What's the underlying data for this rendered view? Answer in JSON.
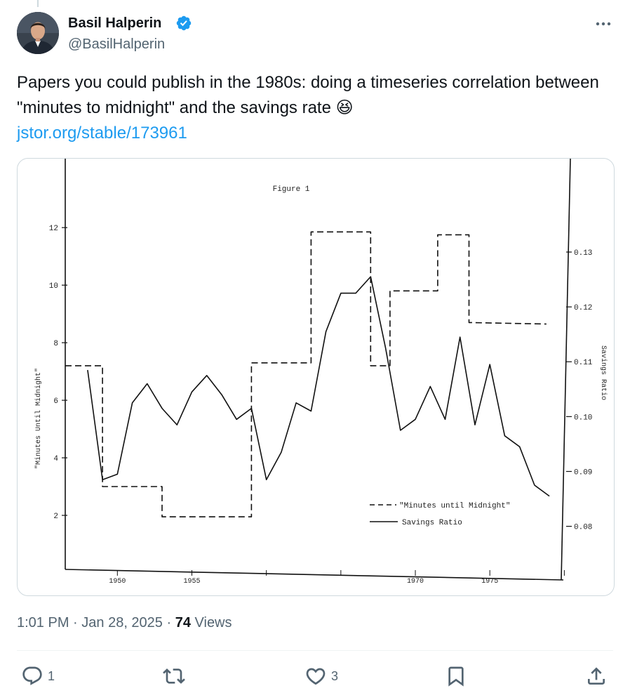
{
  "author": {
    "name": "Basil Halperin",
    "handle": "@BasilHalperin"
  },
  "tweet": {
    "text": "Papers you could publish in the 1980s: doing a timeseries correlation between \"minutes to midnight\" and the savings rate 😆",
    "link": "jstor.org/stable/173961"
  },
  "meta": {
    "time": "1:01 PM",
    "date": "Jan 28, 2025",
    "views_count": "74",
    "views_label": "Views"
  },
  "actions": {
    "reply_count": "1",
    "retweet_count": "",
    "like_count": "3"
  },
  "icons": [
    "verified-badge-icon",
    "more-icon",
    "reply-icon",
    "retweet-icon",
    "like-icon",
    "bookmark-icon",
    "share-icon"
  ],
  "colors": {
    "link": "#1d9bf0",
    "verified": "#1d9bf0",
    "muted": "#536471"
  },
  "chart_data": {
    "type": "line",
    "title": "Figure 1",
    "xlabel": "",
    "ylabel": "\"Minutes Until Midnight\"",
    "y2label": "Savings Ratio",
    "x_ticks": [
      "1950",
      "1955",
      "",
      "",
      "1970",
      "1975",
      ""
    ],
    "x_tick_values": [
      1950,
      1955,
      1960,
      1965,
      1970,
      1975,
      1980
    ],
    "xlim": [
      1946.5,
      1980.5
    ],
    "y_ticks": [
      2,
      4,
      6,
      8,
      10,
      12
    ],
    "ylim": [
      0,
      14.2
    ],
    "y2_ticks": [
      "0.08",
      "0.09",
      "0.10",
      "0.11",
      "0.12",
      "0.13"
    ],
    "y2_tick_values": [
      0.08,
      0.09,
      0.1,
      0.11,
      0.12,
      0.13
    ],
    "y2lim": [
      0.0715,
      0.146
    ],
    "legend": [
      "\"Minutes until Midnight\"",
      "Savings Ratio"
    ],
    "legend_position": "bottom-right",
    "series": [
      {
        "name": "\"Minutes until Midnight\"",
        "style": "dashed",
        "axis": "left",
        "points": [
          [
            1946.5,
            7.2
          ],
          [
            1949,
            7.2
          ],
          [
            1949,
            3.0
          ],
          [
            1953,
            3.0
          ],
          [
            1953,
            1.95
          ],
          [
            1959,
            1.95
          ],
          [
            1959,
            7.3
          ],
          [
            1963,
            7.3
          ],
          [
            1963,
            11.85
          ],
          [
            1967,
            11.85
          ],
          [
            1967,
            7.2
          ],
          [
            1968.3,
            7.2
          ],
          [
            1968.3,
            9.8
          ],
          [
            1971.5,
            9.8
          ],
          [
            1971.5,
            11.75
          ],
          [
            1973.6,
            11.75
          ],
          [
            1973.6,
            8.7
          ],
          [
            1978.8,
            8.65
          ]
        ]
      },
      {
        "name": "Savings Ratio",
        "style": "solid",
        "axis": "right",
        "points": [
          [
            1948,
            0.1085
          ],
          [
            1949,
            0.0885
          ],
          [
            1950,
            0.0895
          ],
          [
            1951,
            0.1025
          ],
          [
            1952,
            0.106
          ],
          [
            1953,
            0.1015
          ],
          [
            1954,
            0.0985
          ],
          [
            1955,
            0.1045
          ],
          [
            1956,
            0.1075
          ],
          [
            1957,
            0.104
          ],
          [
            1958,
            0.0995
          ],
          [
            1959,
            0.1015
          ],
          [
            1960,
            0.0885
          ],
          [
            1961,
            0.0935
          ],
          [
            1962,
            0.1025
          ],
          [
            1963,
            0.101
          ],
          [
            1964,
            0.1155
          ],
          [
            1965,
            0.1225
          ],
          [
            1966,
            0.1225
          ],
          [
            1967,
            0.1255
          ],
          [
            1968,
            0.1125
          ],
          [
            1969,
            0.0975
          ],
          [
            1970,
            0.0995
          ],
          [
            1971,
            0.1055
          ],
          [
            1972,
            0.0995
          ],
          [
            1973,
            0.1145
          ],
          [
            1974,
            0.0985
          ],
          [
            1975,
            0.1095
          ],
          [
            1976,
            0.0965
          ],
          [
            1977,
            0.0945
          ],
          [
            1978,
            0.0875
          ],
          [
            1979,
            0.0855
          ]
        ]
      }
    ]
  }
}
